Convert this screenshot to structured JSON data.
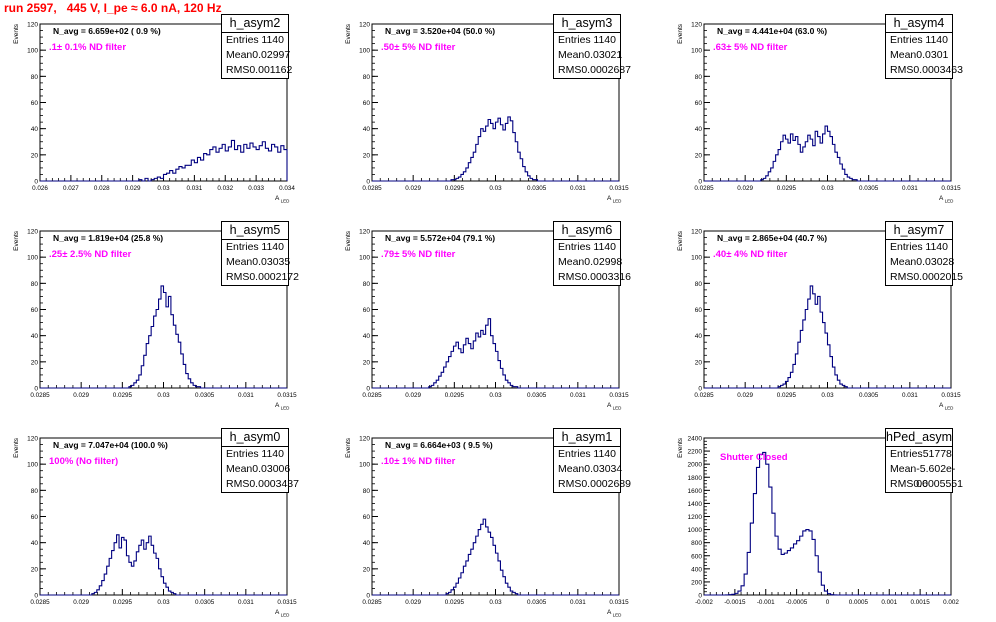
{
  "title": "run 2597,   445 V, I_pe ≈ 6.0 nA, 120 Hz",
  "colors": {
    "title": "#ff0000",
    "filter_text": "#ff00ff",
    "histogram": "#000080",
    "axis": "#000000"
  },
  "chart_data": [
    {
      "type": "histogram",
      "name": "h_asym2",
      "navg": "N_avg = 6.659e+02 ( 0.9 %)",
      "filter": ".1± 0.1% ND filter",
      "stats": [
        [
          "Entries",
          "1140"
        ],
        [
          "Mean",
          "0.02997"
        ],
        [
          "RMS",
          "0.001162"
        ]
      ],
      "ylabel": "Events",
      "xlabel": "A_LED",
      "xlim": [
        0.026,
        0.034
      ],
      "ylim": [
        0,
        120
      ],
      "xticks": [
        0.026,
        0.027,
        0.028,
        0.029,
        0.03,
        0.031,
        0.032,
        0.033,
        0.034
      ],
      "xtick_labels": [
        "0.026",
        "0.027",
        "0.028",
        "0.029",
        "0.03",
        "0.031",
        "0.032",
        "0.033",
        "0.034"
      ],
      "yticks": [
        0,
        20,
        40,
        60,
        80,
        100,
        120
      ],
      "bin_low": 0.026,
      "bin_width": 0.0001,
      "counts": [
        0,
        0,
        0,
        0,
        0,
        0,
        0,
        0,
        0,
        0,
        0,
        0,
        0,
        0,
        0,
        0,
        0,
        0,
        0,
        0,
        0,
        0,
        0,
        0,
        0,
        0,
        0,
        0,
        0,
        0,
        0,
        0,
        1,
        0,
        2,
        0,
        1,
        2,
        3,
        2,
        5,
        6,
        8,
        6,
        9,
        11,
        10,
        12,
        12,
        16,
        14,
        18,
        16,
        21,
        20,
        24,
        26,
        22,
        25,
        28,
        23,
        26,
        31,
        24,
        27,
        22,
        28,
        25,
        29,
        26,
        24,
        27,
        30,
        25,
        23,
        28,
        26,
        22,
        27,
        24,
        21,
        25,
        20,
        22,
        19,
        16,
        18,
        14,
        15,
        11,
        12,
        9,
        10,
        7,
        8,
        5,
        4,
        2,
        3,
        1,
        1,
        0,
        1,
        0,
        0,
        0,
        0,
        0,
        0,
        0,
        0,
        0,
        0,
        0,
        0,
        0,
        0,
        0,
        0,
        0,
        0
      ]
    },
    {
      "type": "histogram",
      "name": "h_asym3",
      "navg": "N_avg = 3.520e+04 (50.0 %)",
      "filter": ".50± 5% ND filter",
      "stats": [
        [
          "Entries",
          "1140"
        ],
        [
          "Mean",
          "0.03021"
        ],
        [
          "RMS",
          "0.0002687"
        ]
      ],
      "ylabel": "Events",
      "xlabel": "A_LED",
      "xlim": [
        0.0285,
        0.0315
      ],
      "ylim": [
        0,
        120
      ],
      "xticks": [
        0.0285,
        0.029,
        0.0295,
        0.03,
        0.0305,
        0.031,
        0.0315
      ],
      "xtick_labels": [
        "0.0285",
        "0.029",
        "0.0295",
        "0.03",
        "0.0305",
        "0.031",
        "0.0315"
      ],
      "yticks": [
        0,
        20,
        40,
        60,
        80,
        100,
        120
      ],
      "bin_low": 0.0285,
      "bin_width": 3e-05,
      "counts": [
        0,
        0,
        0,
        0,
        0,
        0,
        0,
        0,
        0,
        0,
        0,
        0,
        0,
        0,
        0,
        0,
        0,
        0,
        0,
        0,
        0,
        0,
        0,
        0,
        0,
        0,
        0,
        0,
        0,
        0,
        0,
        0,
        1,
        1,
        2,
        3,
        5,
        7,
        10,
        14,
        18,
        22,
        28,
        34,
        40,
        38,
        42,
        47,
        44,
        40,
        45,
        48,
        43,
        39,
        44,
        49,
        46,
        37,
        30,
        22,
        17,
        11,
        7,
        4,
        2,
        1,
        1,
        0,
        0,
        0,
        0,
        0,
        0,
        0,
        0,
        0,
        0,
        0,
        0,
        0,
        0,
        0,
        0,
        0,
        0,
        0,
        0,
        0,
        0,
        0,
        0,
        0,
        0,
        0,
        0,
        0,
        0,
        0,
        0,
        0
      ]
    },
    {
      "type": "histogram",
      "name": "h_asym4",
      "navg": "N_avg = 4.441e+04 (63.0 %)",
      "filter": ".63± 5% ND filter",
      "stats": [
        [
          "Entries",
          "1140"
        ],
        [
          "Mean",
          "0.0301"
        ],
        [
          "RMS",
          "0.0003463"
        ]
      ],
      "ylabel": "Events",
      "xlabel": "A_LED",
      "xlim": [
        0.0285,
        0.0315
      ],
      "ylim": [
        0,
        120
      ],
      "xticks": [
        0.0285,
        0.029,
        0.0295,
        0.03,
        0.0305,
        0.031,
        0.0315
      ],
      "xtick_labels": [
        "0.0285",
        "0.029",
        "0.0295",
        "0.03",
        "0.0305",
        "0.031",
        "0.0315"
      ],
      "yticks": [
        0,
        20,
        40,
        60,
        80,
        100,
        120
      ],
      "bin_low": 0.0285,
      "bin_width": 3e-05,
      "counts": [
        0,
        0,
        0,
        0,
        0,
        0,
        0,
        0,
        0,
        0,
        0,
        0,
        0,
        0,
        0,
        0,
        0,
        0,
        0,
        0,
        0,
        0,
        0,
        1,
        2,
        4,
        7,
        10,
        15,
        20,
        24,
        30,
        35,
        32,
        29,
        36,
        31,
        34,
        28,
        22,
        26,
        30,
        35,
        32,
        27,
        38,
        34,
        29,
        36,
        42,
        38,
        34,
        28,
        22,
        18,
        13,
        9,
        5,
        3,
        2,
        1,
        1,
        0,
        0,
        0,
        0,
        0,
        0,
        0,
        0,
        0,
        0,
        0,
        0,
        0,
        0,
        0,
        0,
        0,
        0,
        0,
        0,
        0,
        0,
        0,
        0,
        0,
        0,
        0,
        0,
        0,
        0,
        0,
        0,
        0,
        0,
        0,
        0,
        0,
        0
      ]
    },
    {
      "type": "histogram",
      "name": "h_asym5",
      "navg": "N_avg = 1.819e+04 (25.8 %)",
      "filter": ".25± 2.5% ND filter",
      "stats": [
        [
          "Entries",
          "1140"
        ],
        [
          "Mean",
          "0.03035"
        ],
        [
          "RMS",
          "0.0002172"
        ]
      ],
      "ylabel": "Events",
      "xlabel": "A_LED",
      "xlim": [
        0.0285,
        0.0315
      ],
      "ylim": [
        0,
        120
      ],
      "xticks": [
        0.0285,
        0.029,
        0.0295,
        0.03,
        0.0305,
        0.031,
        0.0315
      ],
      "xtick_labels": [
        "0.0285",
        "0.029",
        "0.0295",
        "0.03",
        "0.0305",
        "0.031",
        "0.0315"
      ],
      "yticks": [
        0,
        20,
        40,
        60,
        80,
        100,
        120
      ],
      "bin_low": 0.0285,
      "bin_width": 3e-05,
      "counts": [
        0,
        0,
        0,
        0,
        0,
        0,
        0,
        0,
        0,
        0,
        0,
        0,
        0,
        0,
        0,
        0,
        0,
        0,
        0,
        0,
        0,
        0,
        0,
        0,
        0,
        0,
        0,
        0,
        0,
        0,
        0,
        0,
        0,
        0,
        0,
        0,
        1,
        2,
        4,
        6,
        10,
        17,
        25,
        34,
        40,
        47,
        55,
        60,
        68,
        78,
        73,
        62,
        70,
        56,
        48,
        41,
        35,
        26,
        18,
        11,
        7,
        4,
        2,
        1,
        1,
        0,
        0,
        0,
        0,
        0,
        0,
        0,
        0,
        0,
        0,
        0,
        0,
        0,
        0,
        0,
        0,
        0,
        0,
        0,
        0,
        0,
        0,
        0,
        0,
        0,
        0,
        0,
        0,
        0,
        0,
        0,
        0,
        0,
        0,
        0
      ]
    },
    {
      "type": "histogram",
      "name": "h_asym6",
      "navg": "N_avg = 5.572e+04 (79.1 %)",
      "filter": ".79± 5% ND filter",
      "stats": [
        [
          "Entries",
          "1140"
        ],
        [
          "Mean",
          "0.02998"
        ],
        [
          "RMS",
          "0.0003316"
        ]
      ],
      "ylabel": "Events",
      "xlabel": "A_LED",
      "xlim": [
        0.0285,
        0.0315
      ],
      "ylim": [
        0,
        120
      ],
      "xticks": [
        0.0285,
        0.029,
        0.0295,
        0.03,
        0.0305,
        0.031,
        0.0315
      ],
      "xtick_labels": [
        "0.0285",
        "0.029",
        "0.0295",
        "0.03",
        "0.0305",
        "0.031",
        "0.0315"
      ],
      "yticks": [
        0,
        20,
        40,
        60,
        80,
        100,
        120
      ],
      "bin_low": 0.0285,
      "bin_width": 3e-05,
      "counts": [
        0,
        0,
        0,
        0,
        0,
        0,
        0,
        0,
        0,
        0,
        0,
        0,
        0,
        0,
        0,
        0,
        0,
        0,
        0,
        0,
        0,
        0,
        0,
        1,
        2,
        4,
        6,
        9,
        12,
        16,
        20,
        24,
        28,
        32,
        35,
        30,
        27,
        33,
        38,
        34,
        30,
        36,
        42,
        39,
        44,
        41,
        48,
        53,
        40,
        34,
        28,
        21,
        15,
        10,
        6,
        4,
        2,
        1,
        1,
        0,
        0,
        0,
        0,
        0,
        0,
        0,
        0,
        0,
        0,
        0,
        0,
        0,
        0,
        0,
        0,
        0,
        0,
        0,
        0,
        0,
        0,
        0,
        0,
        0,
        0,
        0,
        0,
        0,
        0,
        0,
        0,
        0,
        0,
        0,
        0,
        0,
        0,
        0,
        0,
        0
      ]
    },
    {
      "type": "histogram",
      "name": "h_asym7",
      "navg": "N_avg = 2.865e+04 (40.7 %)",
      "filter": ".40± 4% ND filter",
      "stats": [
        [
          "Entries",
          "1140"
        ],
        [
          "Mean",
          "0.03028"
        ],
        [
          "RMS",
          "0.0002015"
        ]
      ],
      "ylabel": "Events",
      "xlabel": "A_LED",
      "xlim": [
        0.0285,
        0.0315
      ],
      "ylim": [
        0,
        120
      ],
      "xticks": [
        0.0285,
        0.029,
        0.0295,
        0.03,
        0.0305,
        0.031,
        0.0315
      ],
      "xtick_labels": [
        "0.0285",
        "0.029",
        "0.0295",
        "0.03",
        "0.0305",
        "0.031",
        "0.0315"
      ],
      "yticks": [
        0,
        20,
        40,
        60,
        80,
        100,
        120
      ],
      "bin_low": 0.0285,
      "bin_width": 3e-05,
      "counts": [
        0,
        0,
        0,
        0,
        0,
        0,
        0,
        0,
        0,
        0,
        0,
        0,
        0,
        0,
        0,
        0,
        0,
        0,
        0,
        0,
        0,
        0,
        0,
        0,
        0,
        0,
        0,
        0,
        0,
        0,
        1,
        2,
        3,
        5,
        8,
        12,
        18,
        26,
        35,
        44,
        52,
        60,
        68,
        78,
        72,
        64,
        70,
        58,
        50,
        42,
        33,
        24,
        16,
        10,
        6,
        3,
        2,
        1,
        0,
        0,
        0,
        0,
        0,
        0,
        0,
        0,
        0,
        0,
        0,
        0,
        0,
        0,
        0,
        0,
        0,
        0,
        0,
        0,
        0,
        0,
        0,
        0,
        0,
        0,
        0,
        0,
        0,
        0,
        0,
        0,
        0,
        0,
        0,
        0,
        0,
        0,
        0,
        0,
        0,
        0
      ]
    },
    {
      "type": "histogram",
      "name": "h_asym0",
      "navg": "N_avg = 7.047e+04 (100.0 %)",
      "filter": "100% (No filter)",
      "stats": [
        [
          "Entries",
          "1140"
        ],
        [
          "Mean",
          "0.03006"
        ],
        [
          "RMS",
          "0.0003437"
        ]
      ],
      "ylabel": "Events",
      "xlabel": "A_LED",
      "xlim": [
        0.0285,
        0.0315
      ],
      "ylim": [
        0,
        120
      ],
      "xticks": [
        0.0285,
        0.029,
        0.0295,
        0.03,
        0.0305,
        0.031,
        0.0315
      ],
      "xtick_labels": [
        "0.0285",
        "0.029",
        "0.0295",
        "0.03",
        "0.0305",
        "0.031",
        "0.0315"
      ],
      "yticks": [
        0,
        20,
        40,
        60,
        80,
        100,
        120
      ],
      "bin_low": 0.0285,
      "bin_width": 3e-05,
      "counts": [
        0,
        0,
        0,
        0,
        0,
        0,
        0,
        0,
        0,
        0,
        0,
        0,
        0,
        0,
        0,
        0,
        0,
        0,
        0,
        0,
        0,
        1,
        2,
        4,
        7,
        11,
        16,
        22,
        28,
        34,
        40,
        46,
        36,
        44,
        42,
        30,
        25,
        22,
        26,
        33,
        38,
        42,
        35,
        40,
        45,
        38,
        32,
        28,
        20,
        14,
        9,
        6,
        3,
        2,
        1,
        0,
        0,
        0,
        0,
        0,
        0,
        0,
        0,
        0,
        0,
        0,
        0,
        0,
        0,
        0,
        0,
        0,
        0,
        0,
        0,
        0,
        0,
        0,
        0,
        0,
        0,
        0,
        0,
        0,
        0,
        0,
        0,
        0,
        0,
        0,
        0,
        0,
        0,
        0,
        0,
        0,
        0,
        0,
        0,
        0
      ]
    },
    {
      "type": "histogram",
      "name": "h_asym1",
      "navg": "N_avg = 6.664e+03 ( 9.5 %)",
      "filter": ".10± 1% ND filter",
      "stats": [
        [
          "Entries",
          "1140"
        ],
        [
          "Mean",
          "0.03034"
        ],
        [
          "RMS",
          "0.0002689"
        ]
      ],
      "ylabel": "Events",
      "xlabel": "A_LED",
      "xlim": [
        0.0285,
        0.0315
      ],
      "ylim": [
        0,
        120
      ],
      "xticks": [
        0.0285,
        0.029,
        0.0295,
        0.03,
        0.0305,
        0.031,
        0.0315
      ],
      "xtick_labels": [
        "0.0285",
        "0.029",
        "0.0295",
        "0.03",
        "0.0305",
        "0.031",
        "0.0315"
      ],
      "yticks": [
        0,
        20,
        40,
        60,
        80,
        100,
        120
      ],
      "bin_low": 0.0285,
      "bin_width": 3e-05,
      "counts": [
        0,
        0,
        0,
        0,
        0,
        0,
        0,
        0,
        0,
        0,
        0,
        0,
        0,
        0,
        0,
        0,
        0,
        0,
        0,
        0,
        0,
        0,
        0,
        0,
        0,
        0,
        0,
        0,
        0,
        0,
        1,
        2,
        4,
        6,
        9,
        13,
        17,
        22,
        26,
        31,
        35,
        40,
        45,
        50,
        54,
        58,
        52,
        48,
        44,
        38,
        32,
        26,
        19,
        14,
        9,
        6,
        3,
        2,
        1,
        0,
        0,
        0,
        0,
        0,
        0,
        0,
        0,
        0,
        0,
        0,
        0,
        0,
        0,
        0,
        0,
        0,
        0,
        0,
        0,
        0,
        0,
        0,
        0,
        0,
        0,
        0,
        0,
        0,
        0,
        0,
        0,
        0,
        0,
        0,
        0,
        0,
        0,
        0,
        0,
        0
      ]
    },
    {
      "type": "histogram",
      "name": "hPed_asym",
      "navg": "",
      "filter": "Shutter Closed",
      "stats": [
        [
          "Entries",
          "51778"
        ],
        [
          "Mean",
          "-5.602e-06"
        ],
        [
          "RMS",
          "0.0005551"
        ]
      ],
      "ylabel": "Events",
      "xlabel": "",
      "xlim": [
        -0.002,
        0.002
      ],
      "ylim": [
        0,
        2400
      ],
      "xticks": [
        -0.002,
        -0.0015,
        -0.001,
        -0.0005,
        0,
        0.0005,
        0.001,
        0.0015,
        0.002
      ],
      "xtick_labels": [
        "-0.002",
        "-0.0015",
        "-0.001",
        "-0.0005",
        "0",
        "0.0005",
        "0.001",
        "0.0015",
        "0.002"
      ],
      "yticks": [
        0,
        200,
        400,
        600,
        800,
        1000,
        1200,
        1400,
        1600,
        1800,
        2000,
        2200,
        2400
      ],
      "bin_low": -0.002,
      "bin_width": 5e-05,
      "counts": [
        0,
        0,
        0,
        0,
        0,
        0,
        0,
        2,
        5,
        10,
        25,
        60,
        140,
        320,
        650,
        1100,
        1550,
        1950,
        2150,
        2180,
        2000,
        1650,
        1250,
        900,
        700,
        620,
        640,
        680,
        720,
        780,
        830,
        900,
        980,
        1000,
        980,
        850,
        600,
        350,
        150,
        60,
        20,
        5,
        1,
        0,
        0,
        0,
        0,
        0,
        0,
        0,
        0,
        0,
        0,
        0,
        0,
        0,
        0,
        0,
        0,
        0,
        0,
        0,
        0,
        0,
        0,
        0,
        0,
        0,
        0,
        0,
        0,
        0,
        0,
        0,
        0,
        0,
        0,
        0,
        0,
        0
      ]
    }
  ]
}
